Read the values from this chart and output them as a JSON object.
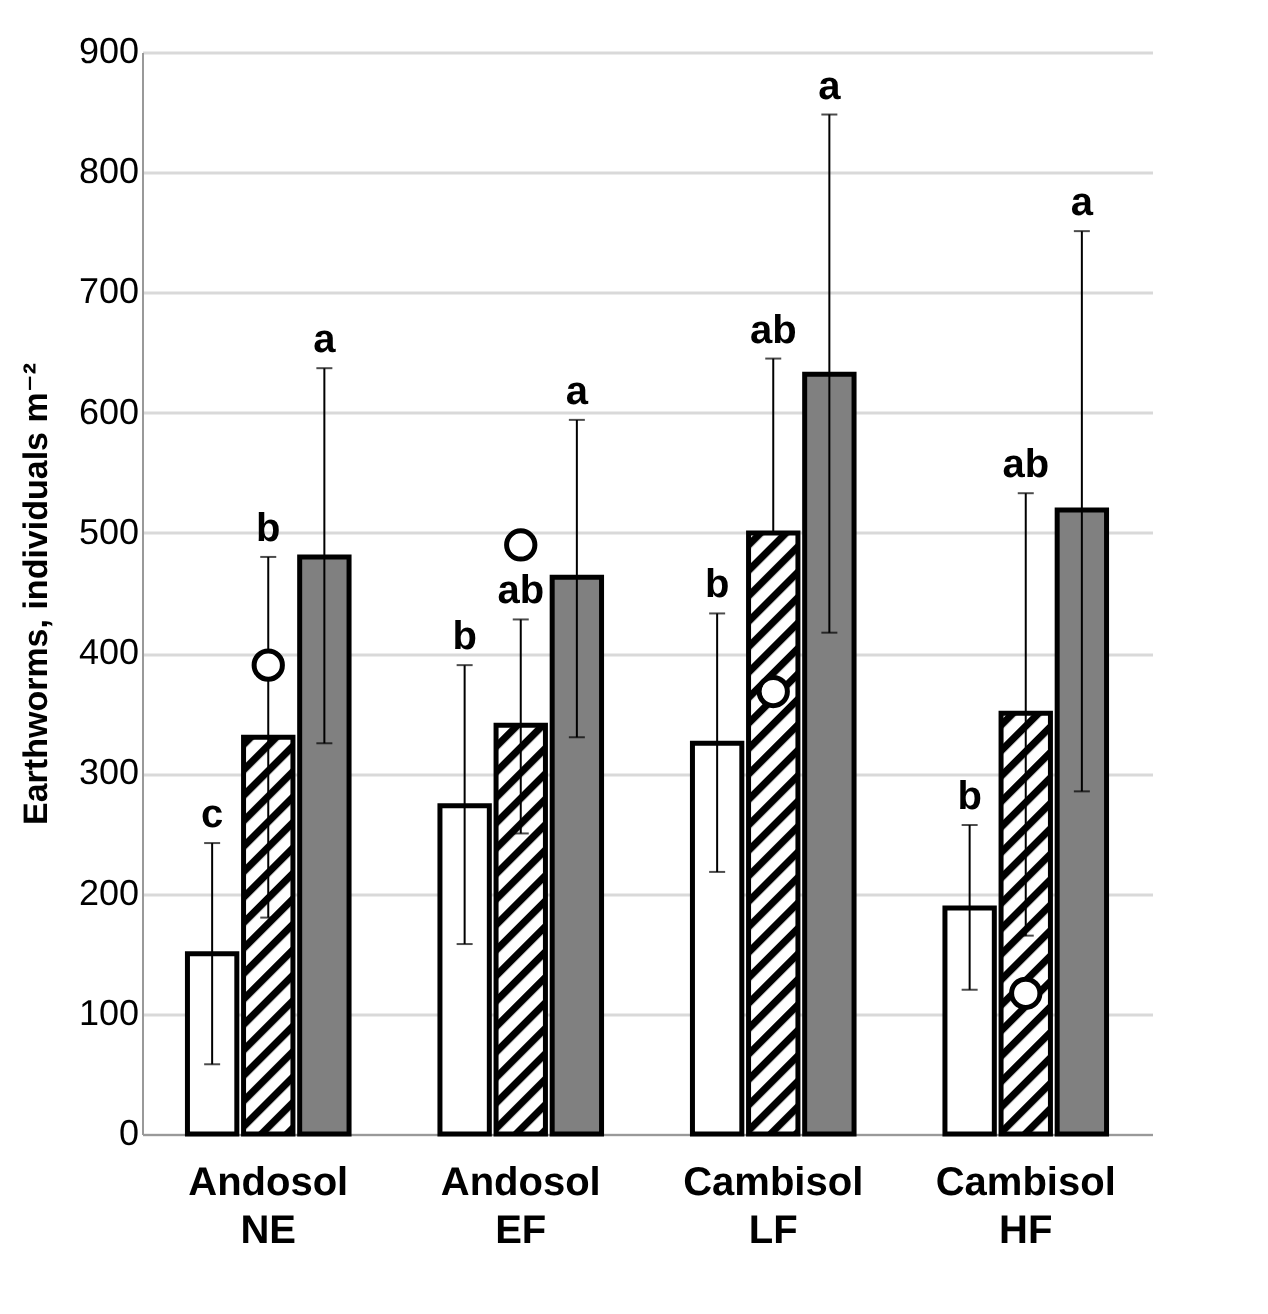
{
  "chart_data": {
    "type": "bar",
    "ylabel": "Earthworms, individuals m⁻²",
    "categories": [
      "Andosol NE",
      "Andosol EF",
      "Cambisol LF",
      "Cambisol HF"
    ],
    "ylim": [
      0,
      900
    ],
    "yticks": [
      0,
      100,
      200,
      300,
      400,
      500,
      600,
      700,
      800,
      900
    ],
    "grid": "y",
    "series": [
      {
        "color": "#ffffff",
        "values": [
          150,
          273,
          325,
          188
        ],
        "errors": [
          [
            58,
            242
          ],
          [
            158,
            390
          ],
          [
            218,
            433
          ],
          [
            120,
            257
          ]
        ]
      },
      {
        "color": "#000000",
        "values": [
          330,
          340,
          500,
          350
        ],
        "errors": [
          [
            180,
            480
          ],
          [
            250,
            428
          ],
          [
            500,
            645
          ],
          [
            165,
            533
          ]
        ]
      },
      {
        "color": "#808080",
        "values": [
          480,
          463,
          632,
          519
        ],
        "errors": [
          [
            325,
            637
          ],
          [
            330,
            594
          ],
          [
            417,
            848
          ],
          [
            285,
            751
          ]
        ]
      },
      {
        "type": "scatter",
        "marker": "circle",
        "color": "#ffffff",
        "x": [
          "Andosol NE",
          "Andosol EF",
          "Cambisol LF",
          "Cambisol HF"
        ],
        "values": [
          390,
          490,
          368,
          117
        ]
      }
    ],
    "annotations": [
      "c",
      "b",
      "a",
      "b",
      "ab",
      "a",
      "b",
      "ab",
      "a",
      "b",
      "ab",
      "a"
    ]
  }
}
